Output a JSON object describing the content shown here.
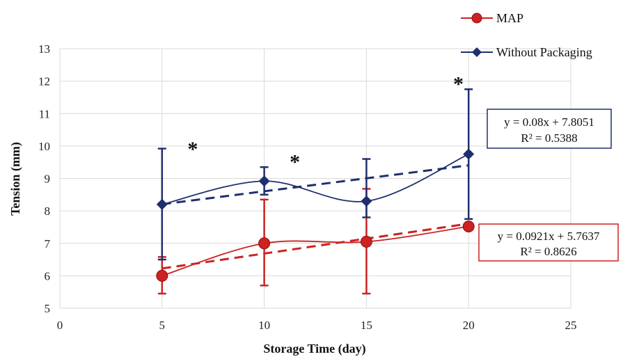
{
  "chart_data": {
    "type": "line",
    "xlabel": "Storage Time (day)",
    "ylabel": "Tension (mm)",
    "xlim": [
      0,
      25
    ],
    "ylim": [
      5,
      13
    ],
    "xticks": [
      0,
      5,
      10,
      15,
      20,
      25
    ],
    "yticks": [
      5,
      6,
      7,
      8,
      9,
      10,
      11,
      12,
      13
    ],
    "grid": true,
    "legend_position": "top-right",
    "x": [
      5,
      10,
      15,
      20
    ],
    "series": [
      {
        "name": "MAP",
        "color": "#cc2222",
        "marker": "circle",
        "values": [
          6.0,
          7.0,
          7.05,
          7.52
        ],
        "error_upper": [
          6.58,
          8.35,
          8.68,
          7.55
        ],
        "error_lower": [
          5.45,
          5.7,
          5.45,
          7.42
        ],
        "trendline": {
          "slope": 0.0921,
          "intercept": 5.7637,
          "equation": "y = 0.0921x + 5.7637",
          "r2": "R² = 0.8626"
        }
      },
      {
        "name": "Without Packaging",
        "color": "#1f2f6e",
        "marker": "diamond",
        "values": [
          8.2,
          8.92,
          8.3,
          9.75
        ],
        "error_upper": [
          9.92,
          9.35,
          9.6,
          11.75
        ],
        "error_lower": [
          6.5,
          8.5,
          7.8,
          7.75
        ],
        "trendline": {
          "slope": 0.08,
          "intercept": 7.8051,
          "equation": "y = 0.08x + 7.8051",
          "r2": "R² = 0.5388"
        }
      }
    ],
    "annotations": [
      {
        "text": "*",
        "x": 6.5,
        "y": 10.0
      },
      {
        "text": "*",
        "x": 11.5,
        "y": 9.6
      },
      {
        "text": "*",
        "x": 19.5,
        "y": 12.0
      }
    ]
  }
}
